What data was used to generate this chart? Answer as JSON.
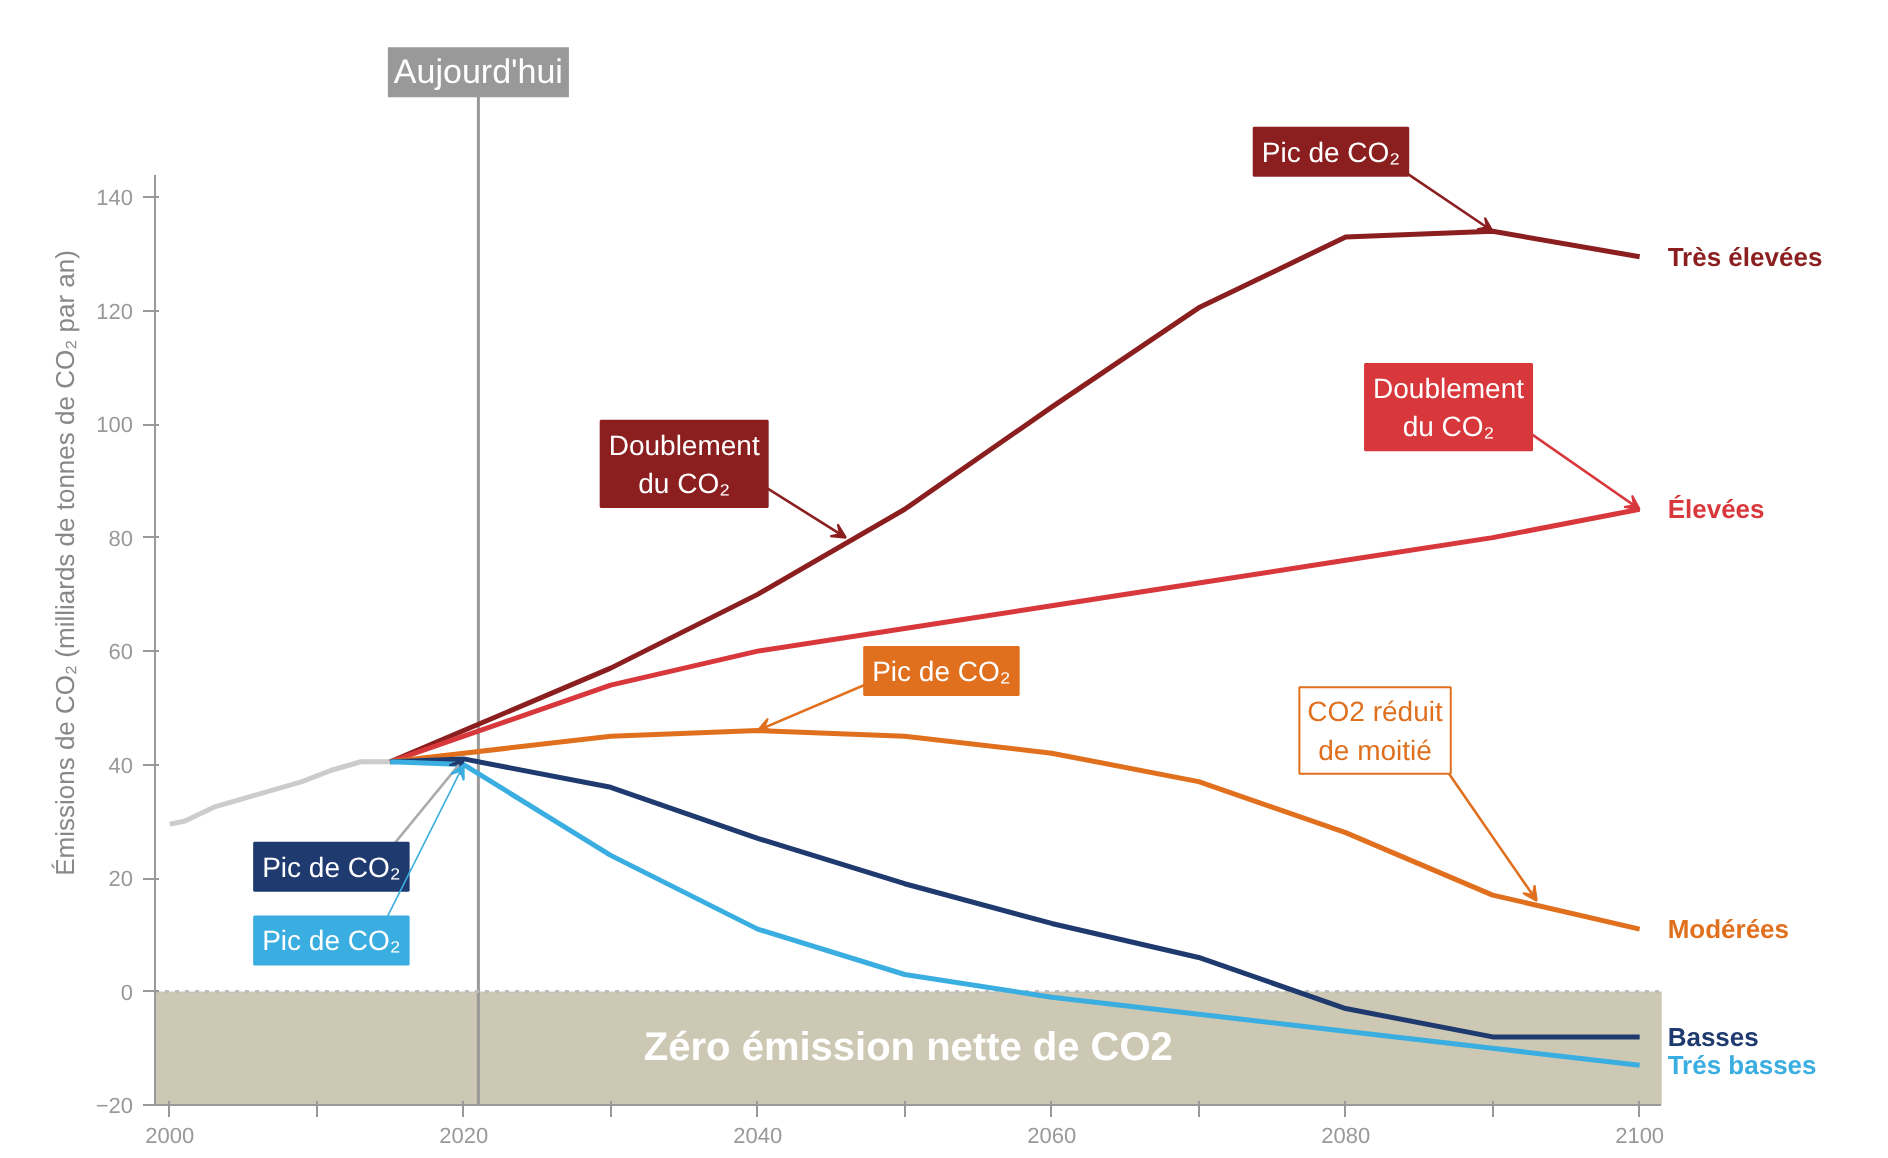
{
  "chart_data": {
    "type": "line",
    "ylabel": "Émissions de CO₂ (milliards de tonnes de CO₂ par an)",
    "xlim": [
      1999,
      2101.5
    ],
    "ylim": [
      -20,
      144
    ],
    "xticks": [
      2000,
      {
        "value": 2010,
        "label": null
      },
      2020,
      {
        "value": 2030,
        "label": null
      },
      2040,
      {
        "value": 2050,
        "label": null
      },
      2060,
      {
        "value": 2070,
        "label": null
      },
      2080,
      {
        "value": 2090,
        "label": null
      },
      2100
    ],
    "yticks": [
      -20,
      0,
      20,
      40,
      60,
      80,
      100,
      120,
      140
    ],
    "grid": false,
    "marker": "none",
    "line_style": "solid",
    "series": [
      {
        "color": "#cccccc",
        "x": [
          2000,
          2001,
          2003,
          2005,
          2007,
          2009,
          2011,
          2013,
          2015
        ],
        "values": [
          29.5,
          30,
          32.5,
          34,
          35.5,
          37,
          39,
          40.5,
          40.5
        ]
      },
      {
        "name": "Très élevées",
        "color": "#8b1e1e",
        "x": [
          2015,
          2020,
          2030,
          2040,
          2050,
          2060,
          2070,
          2080,
          2090,
          2100
        ],
        "values": [
          40.5,
          46,
          57,
          70,
          85,
          103,
          120.5,
          133,
          134,
          129.5
        ]
      },
      {
        "name": "Élevées",
        "color": "#d8383c",
        "x": [
          2015,
          2020,
          2030,
          2040,
          2050,
          2060,
          2070,
          2080,
          2090,
          2100
        ],
        "values": [
          40.5,
          45,
          54,
          60,
          64,
          68,
          72,
          76,
          80,
          85
        ]
      },
      {
        "name": "Modérées",
        "color": "#e0701e",
        "x": [
          2015,
          2020,
          2030,
          2040,
          2050,
          2060,
          2070,
          2080,
          2090,
          2100
        ],
        "values": [
          40.5,
          42,
          45,
          46,
          45,
          42,
          37,
          28,
          17,
          11
        ]
      },
      {
        "name": "Basses",
        "color": "#1f3a6e",
        "x": [
          2015,
          2020,
          2030,
          2040,
          2050,
          2060,
          2070,
          2080,
          2090,
          2100
        ],
        "values": [
          40.5,
          41,
          36,
          27,
          19,
          12,
          6,
          -3,
          -8,
          -8
        ]
      },
      {
        "name": "Trés basses",
        "color": "#3aaee0",
        "x": [
          2015,
          2020,
          2030,
          2040,
          2050,
          2060,
          2070,
          2080,
          2090,
          2100
        ],
        "values": [
          40.5,
          40,
          24,
          11,
          3,
          -1,
          -4,
          -7,
          -10,
          -13
        ]
      }
    ],
    "ref_lines": [
      {
        "axis": "x",
        "value": 2021,
        "label": "Aujourd'hui",
        "color": "#999999"
      },
      {
        "axis": "y",
        "value": 0,
        "color": "#bbbbbb",
        "line_style": "dotted"
      }
    ],
    "bands": [
      {
        "axis": "y",
        "from": -20,
        "to": 0,
        "label": "Zéro émission nette de CO2",
        "color": "#cdc8b3"
      }
    ],
    "annotations": [
      {
        "text": "Doublement du CO₂",
        "x": 2046,
        "y": 80
      },
      {
        "text": "Pic de CO₂",
        "x": 2090,
        "y": 134
      },
      {
        "text": "Doublement du CO₂",
        "x": 2100,
        "y": 85
      },
      {
        "text": "Pic de CO₂",
        "x": 2040,
        "y": 46
      },
      {
        "text": "CO2 réduit de moitié",
        "x": 2093,
        "y": 16
      },
      {
        "text": "Pic de CO₂",
        "x": 2020,
        "y": 41
      },
      {
        "text": "Pic de CO₂",
        "x": 2020,
        "y": 40
      }
    ]
  }
}
